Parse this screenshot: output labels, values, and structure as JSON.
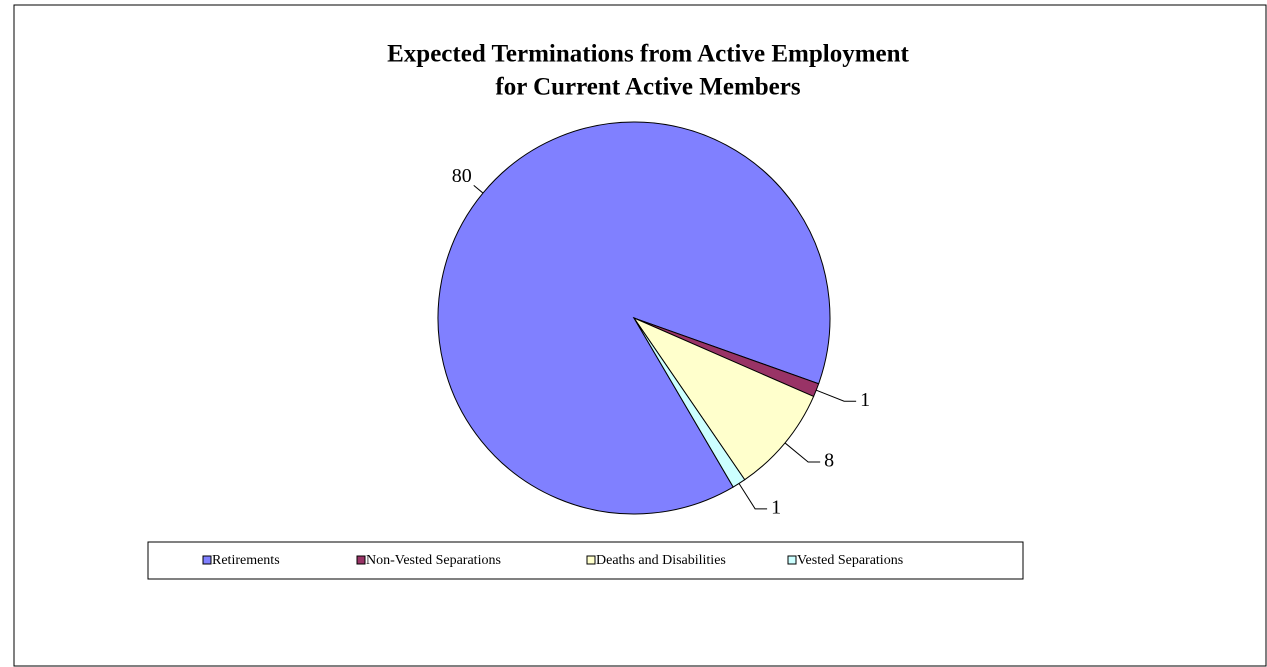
{
  "chart_data": {
    "type": "pie",
    "title": [
      "Expected Terminations  from Active Employment",
      "for Current Active Members"
    ],
    "categories": [
      "Retirements",
      "Non-Vested Separations",
      "Deaths and Disabilities",
      "Vested Separations"
    ],
    "values": [
      80,
      1,
      8,
      1
    ],
    "colors": [
      "#8080ff",
      "#993366",
      "#ffffcc",
      "#ccffff"
    ],
    "legend": "bottom"
  }
}
